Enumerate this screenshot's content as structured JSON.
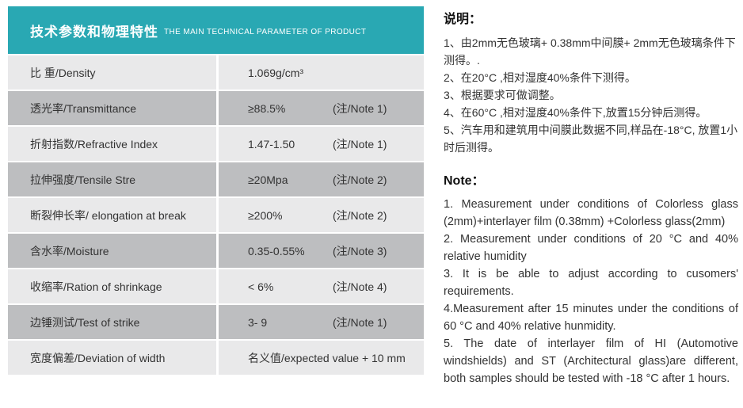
{
  "colors": {
    "header_teal": "#29a8b3",
    "row_light": "#e9e9ea",
    "row_dark": "#bdbec0"
  },
  "table": {
    "title_cn": "技术参数和物理特性",
    "title_en": "THE MAIN TECHNICAL PARAMETER OF PRODUCT",
    "rows": [
      {
        "label": "比 重/Density",
        "value": "1.069g/cm³",
        "note": ""
      },
      {
        "label": "透光率/Transmittance",
        "value": "≥88.5%",
        "note": "(注/Note 1)"
      },
      {
        "label": "折射指数/Refractive Index",
        "value": "1.47-1.50",
        "note": "(注/Note 1)"
      },
      {
        "label": "拉伸强度/Tensile Stre",
        "value": "≥20Mpa",
        "note": "(注/Note 2)"
      },
      {
        "label": "断裂伸长率/ elongation at break",
        "value": "≥200%",
        "note": "(注/Note 2)"
      },
      {
        "label": "含水率/Moisture",
        "value": "0.35-0.55%",
        "note": "(注/Note 3)"
      },
      {
        "label": "收缩率/Ration of shrinkage",
        "value": "< 6%",
        "note": "(注/Note 4)"
      },
      {
        "label": "边锤测试/Test of strike",
        "value": "3- 9",
        "note": "(注/Note 1)"
      },
      {
        "label": "宽度偏差/Deviation of width",
        "value": "名义值/expected value  + 10 mm",
        "note": ""
      }
    ]
  },
  "notes_cn": {
    "heading": "说明：",
    "items": [
      "1、由2mm无色玻璃+ 0.38mm中间膜+ 2mm无色玻璃条件下测得。.",
      "2、在20°C ,相对湿度40%条件下测得。",
      "3、根据要求可做调整。",
      "4、在60°C ,相对湿度40%条件下,放置15分钟后测得。",
      "5、汽车用和建筑用中间膜此数据不同,样品在-18°C, 放置1小时后测得。"
    ]
  },
  "notes_en": {
    "heading": "Note：",
    "items": [
      "1. Measurement under conditions of Colorless glass (2mm)+interlayer film (0.38mm) +Colorless glass(2mm)",
      "2. Measurement under conditions of 20 °C and 40% relative humidity",
      "3. It is be able to adjust according to cusomers' requirements.",
      "4.Measurement after 15 minutes under the conditions of 60 °C and 40% relative hunmidity.",
      "5. The date of interlayer film of HI (Automotive windshields) and ST (Architectural glass)are different, both samples should be tested with -18 °C after 1 hours."
    ]
  }
}
